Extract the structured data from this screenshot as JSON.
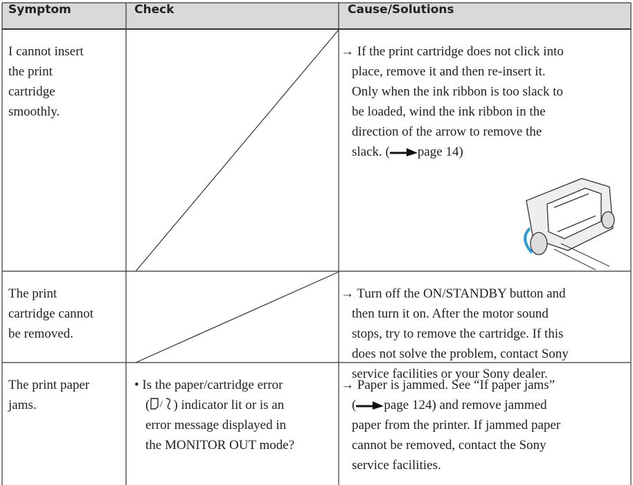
{
  "header": {
    "symptom": "Symptom",
    "check": "Check",
    "cause": "Cause/Solutions"
  },
  "rows": [
    {
      "symptom": [
        "I cannot insert",
        "the print",
        "cartridge",
        "smoothly."
      ],
      "check": [],
      "cause": [
        "→ If the print cartridge does not click into",
        "place, remove it and then re-insert it.",
        "Only when the ink ribbon is too slack to",
        "be loaded, wind the ink ribbon in the",
        "direction of the arrow to remove the",
        [
          "slack. (",
          "page 14)"
        ]
      ]
    },
    {
      "symptom": [
        "The print",
        "cartridge cannot",
        "be removed."
      ],
      "check": [],
      "cause": [
        "→ Turn off the ON/STANDBY button and",
        "then turn it on. After the motor sound",
        "stops, try to remove the cartridge. If this",
        "does not solve the problem, contact Sony",
        "service facilities or your Sony dealer."
      ]
    },
    {
      "symptom": [
        "The print paper",
        "jams."
      ],
      "check": [
        "• Is the paper/cartridge error",
        [
          "(",
          ") indicator lit or is an"
        ],
        "error message displayed in",
        "the MONITOR OUT mode?"
      ],
      "cause": [
        "→ Paper is jammed. See “If paper jams”",
        [
          "(",
          "page 124) and remove jammed"
        ],
        "paper from the printer. If jammed paper",
        "cannot be removed, contact the Sony",
        "service facilities."
      ]
    }
  ]
}
